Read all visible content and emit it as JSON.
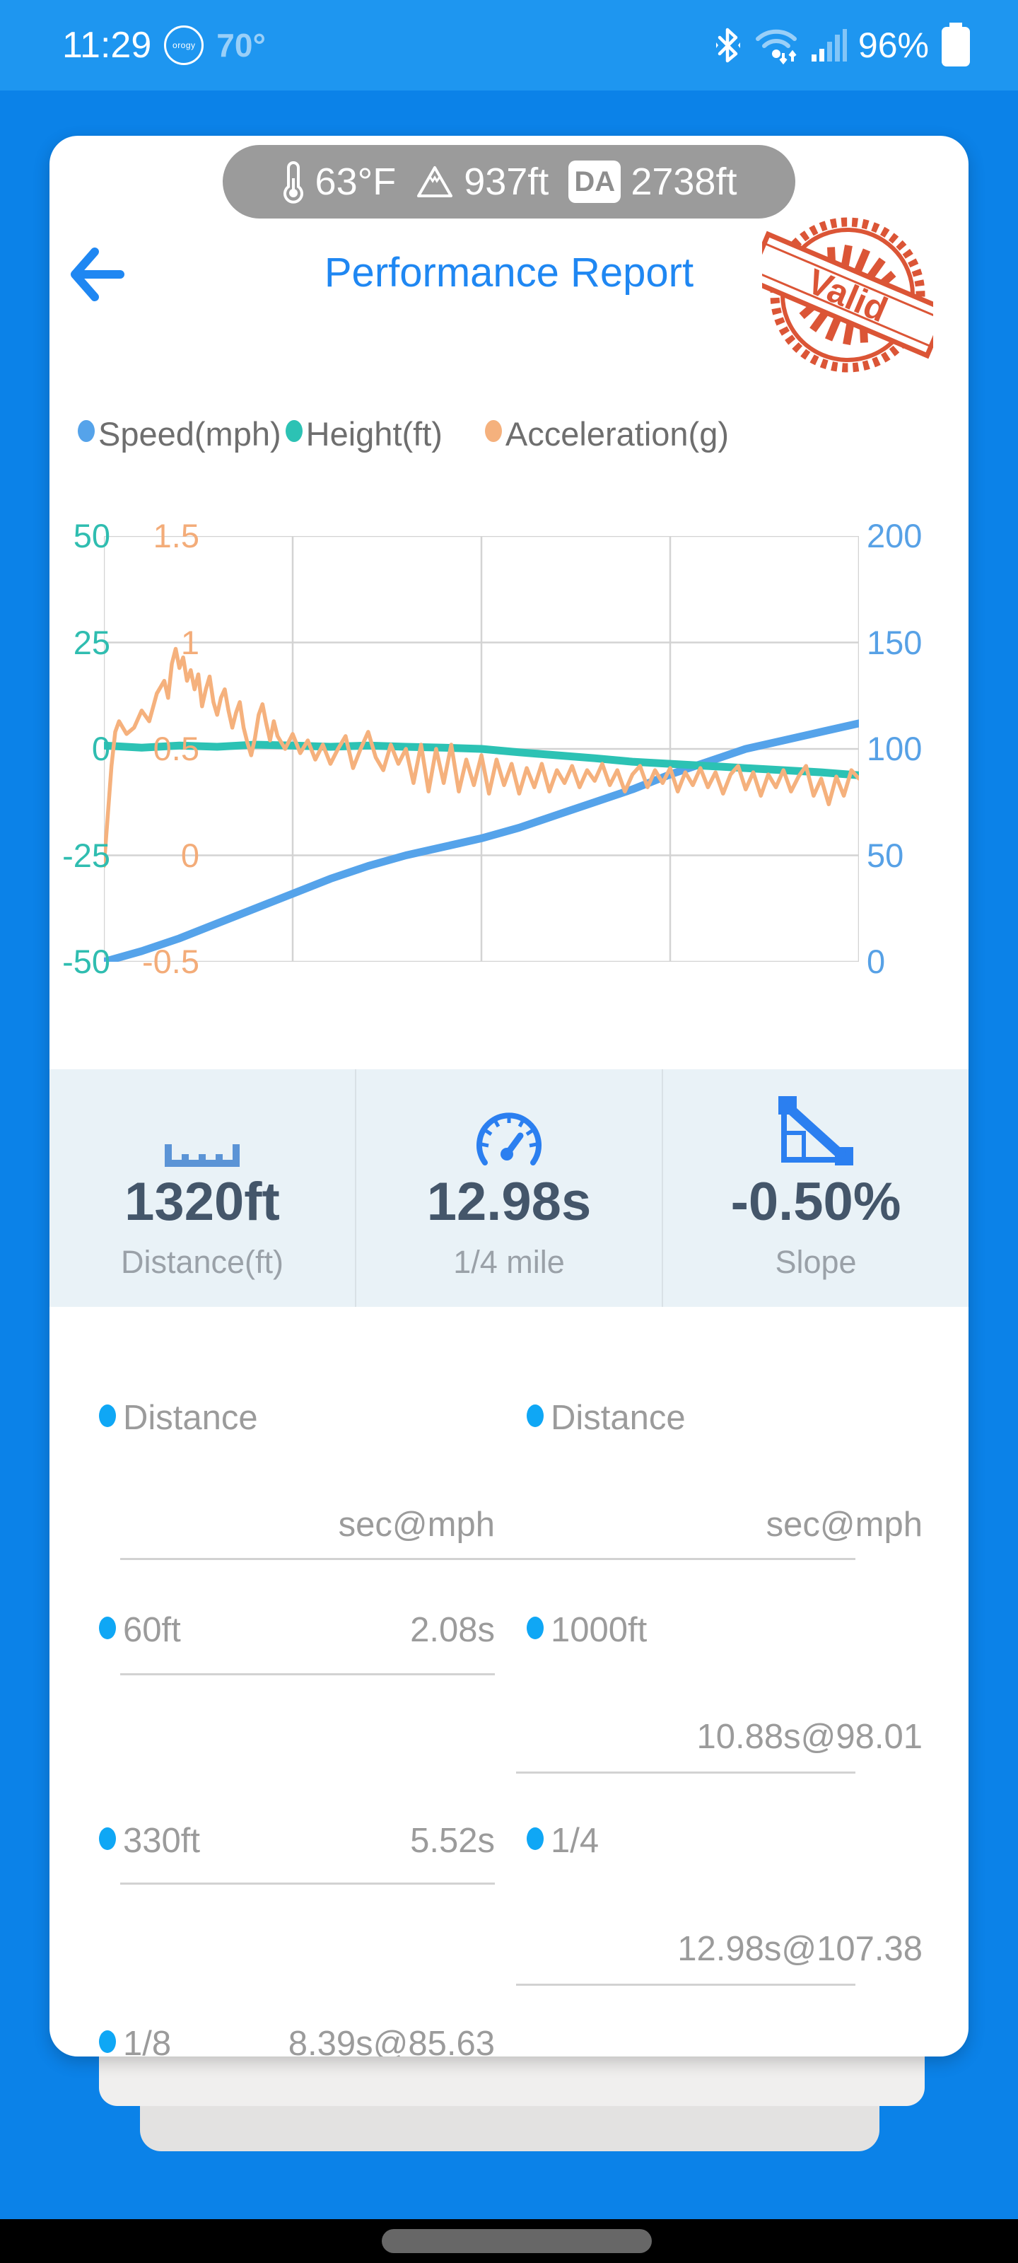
{
  "colors": {
    "app_background": "#0b82e8",
    "status_bar": "#1e96f0",
    "title_blue": "#1f87f2",
    "stamp_red": "#d94726",
    "stats_icon_blue": "#2b7ff0",
    "ruler_icon_blue": "#5b94d6",
    "bullet_blue": "#0fa7f5",
    "stats_bg": "#e9f2f7",
    "value_slate": "#44566a",
    "list_gray": "#9b9b9b",
    "chip_gray": "#9b9b9b"
  },
  "status_bar": {
    "time": "11:29",
    "badge_text": "orogy",
    "ambient_temp": "70°",
    "battery_percent": "96%"
  },
  "weather_chip": {
    "temperature": "63°F",
    "elevation": "937ft",
    "da_badge": "DA",
    "density_altitude": "2738ft"
  },
  "header": {
    "title": "Performance Report",
    "stamp_text": "Valid"
  },
  "chart_data": {
    "type": "line",
    "title": "",
    "legend_position": "top",
    "grid": {
      "h_divisions": 4,
      "v_divisions": 4
    },
    "x_range": [
      0,
      1
    ],
    "axes": {
      "left_height": {
        "label": "Height(ft)",
        "color": "#2fbdb0",
        "range": [
          -50,
          50
        ],
        "ticks": [
          50,
          25,
          0,
          -25,
          -50
        ]
      },
      "left_accel": {
        "label": "Acceleration(g)",
        "color": "#f3ac79",
        "range": [
          -0.5,
          1.5
        ],
        "ticks": [
          "1.5",
          "1",
          "0.5",
          "0",
          "-0.5"
        ]
      },
      "right_speed": {
        "label": "Speed(mph)",
        "color": "#57a1e6",
        "range": [
          0,
          200
        ],
        "ticks": [
          200,
          150,
          100,
          50,
          0
        ]
      }
    },
    "series": [
      {
        "name": "Speed(mph)",
        "axis": "right_speed",
        "color": "#55a3ea",
        "width": 11,
        "points": [
          [
            0,
            0
          ],
          [
            0.05,
            5
          ],
          [
            0.1,
            11
          ],
          [
            0.15,
            18
          ],
          [
            0.2,
            25
          ],
          [
            0.25,
            32
          ],
          [
            0.3,
            39
          ],
          [
            0.35,
            45
          ],
          [
            0.4,
            50
          ],
          [
            0.45,
            54
          ],
          [
            0.5,
            58
          ],
          [
            0.55,
            63
          ],
          [
            0.6,
            69
          ],
          [
            0.65,
            75
          ],
          [
            0.7,
            81
          ],
          [
            0.75,
            88
          ],
          [
            0.8,
            94
          ],
          [
            0.85,
            100
          ],
          [
            0.9,
            104
          ],
          [
            0.95,
            108
          ],
          [
            1,
            112
          ]
        ]
      },
      {
        "name": "Height(ft)",
        "axis": "left_height",
        "color": "#2cc2b4",
        "width": 11,
        "points": [
          [
            0,
            0.8
          ],
          [
            0.05,
            0.3
          ],
          [
            0.1,
            0.8
          ],
          [
            0.15,
            0.5
          ],
          [
            0.2,
            1
          ],
          [
            0.25,
            0.8
          ],
          [
            0.3,
            0.5
          ],
          [
            0.35,
            0.8
          ],
          [
            0.4,
            0.5
          ],
          [
            0.45,
            0.3
          ],
          [
            0.5,
            0
          ],
          [
            0.55,
            -0.8
          ],
          [
            0.6,
            -1.5
          ],
          [
            0.65,
            -2.2
          ],
          [
            0.7,
            -3
          ],
          [
            0.75,
            -3.5
          ],
          [
            0.8,
            -4
          ],
          [
            0.85,
            -4.5
          ],
          [
            0.9,
            -5
          ],
          [
            0.95,
            -5.5
          ],
          [
            1,
            -6.2
          ]
        ]
      },
      {
        "name": "Acceleration(g)",
        "axis": "left_accel",
        "color": "#f5b17d",
        "width": 5.5,
        "points": [
          [
            0,
            -0.05
          ],
          [
            0.005,
            0.18
          ],
          [
            0.01,
            0.42
          ],
          [
            0.015,
            0.58
          ],
          [
            0.02,
            0.63
          ],
          [
            0.03,
            0.57
          ],
          [
            0.04,
            0.6
          ],
          [
            0.05,
            0.68
          ],
          [
            0.06,
            0.63
          ],
          [
            0.07,
            0.76
          ],
          [
            0.08,
            0.82
          ],
          [
            0.085,
            0.74
          ],
          [
            0.09,
            0.9
          ],
          [
            0.095,
            0.97
          ],
          [
            0.1,
            0.88
          ],
          [
            0.105,
            0.93
          ],
          [
            0.11,
            0.82
          ],
          [
            0.115,
            0.87
          ],
          [
            0.12,
            0.78
          ],
          [
            0.125,
            0.85
          ],
          [
            0.13,
            0.7
          ],
          [
            0.135,
            0.78
          ],
          [
            0.14,
            0.84
          ],
          [
            0.145,
            0.72
          ],
          [
            0.15,
            0.66
          ],
          [
            0.155,
            0.74
          ],
          [
            0.16,
            0.78
          ],
          [
            0.165,
            0.68
          ],
          [
            0.17,
            0.6
          ],
          [
            0.175,
            0.67
          ],
          [
            0.18,
            0.72
          ],
          [
            0.185,
            0.6
          ],
          [
            0.19,
            0.53
          ],
          [
            0.195,
            0.47
          ],
          [
            0.2,
            0.55
          ],
          [
            0.205,
            0.66
          ],
          [
            0.21,
            0.71
          ],
          [
            0.215,
            0.62
          ],
          [
            0.22,
            0.54
          ],
          [
            0.225,
            0.63
          ],
          [
            0.23,
            0.56
          ],
          [
            0.24,
            0.5
          ],
          [
            0.25,
            0.57
          ],
          [
            0.26,
            0.48
          ],
          [
            0.27,
            0.54
          ],
          [
            0.28,
            0.45
          ],
          [
            0.29,
            0.52
          ],
          [
            0.3,
            0.43
          ],
          [
            0.31,
            0.5
          ],
          [
            0.32,
            0.56
          ],
          [
            0.33,
            0.41
          ],
          [
            0.34,
            0.5
          ],
          [
            0.35,
            0.58
          ],
          [
            0.36,
            0.46
          ],
          [
            0.37,
            0.4
          ],
          [
            0.38,
            0.52
          ],
          [
            0.39,
            0.43
          ],
          [
            0.4,
            0.5
          ],
          [
            0.41,
            0.34
          ],
          [
            0.42,
            0.52
          ],
          [
            0.43,
            0.3
          ],
          [
            0.44,
            0.5
          ],
          [
            0.45,
            0.34
          ],
          [
            0.46,
            0.52
          ],
          [
            0.47,
            0.3
          ],
          [
            0.48,
            0.45
          ],
          [
            0.49,
            0.33
          ],
          [
            0.5,
            0.47
          ],
          [
            0.51,
            0.29
          ],
          [
            0.52,
            0.45
          ],
          [
            0.53,
            0.33
          ],
          [
            0.54,
            0.43
          ],
          [
            0.55,
            0.29
          ],
          [
            0.56,
            0.41
          ],
          [
            0.57,
            0.32
          ],
          [
            0.58,
            0.43
          ],
          [
            0.59,
            0.3
          ],
          [
            0.6,
            0.4
          ],
          [
            0.61,
            0.34
          ],
          [
            0.62,
            0.42
          ],
          [
            0.63,
            0.32
          ],
          [
            0.64,
            0.4
          ],
          [
            0.65,
            0.35
          ],
          [
            0.66,
            0.43
          ],
          [
            0.67,
            0.33
          ],
          [
            0.68,
            0.4
          ],
          [
            0.69,
            0.3
          ],
          [
            0.7,
            0.38
          ],
          [
            0.71,
            0.42
          ],
          [
            0.72,
            0.32
          ],
          [
            0.73,
            0.4
          ],
          [
            0.74,
            0.34
          ],
          [
            0.75,
            0.41
          ],
          [
            0.76,
            0.3
          ],
          [
            0.77,
            0.39
          ],
          [
            0.78,
            0.33
          ],
          [
            0.79,
            0.41
          ],
          [
            0.8,
            0.32
          ],
          [
            0.81,
            0.39
          ],
          [
            0.82,
            0.29
          ],
          [
            0.83,
            0.38
          ],
          [
            0.84,
            0.42
          ],
          [
            0.85,
            0.31
          ],
          [
            0.86,
            0.39
          ],
          [
            0.87,
            0.28
          ],
          [
            0.88,
            0.38
          ],
          [
            0.89,
            0.32
          ],
          [
            0.9,
            0.4
          ],
          [
            0.91,
            0.3
          ],
          [
            0.92,
            0.37
          ],
          [
            0.93,
            0.42
          ],
          [
            0.94,
            0.28
          ],
          [
            0.95,
            0.36
          ],
          [
            0.96,
            0.24
          ],
          [
            0.97,
            0.37
          ],
          [
            0.98,
            0.28
          ],
          [
            0.99,
            0.4
          ],
          [
            1,
            0.36
          ]
        ]
      }
    ]
  },
  "stats": {
    "items": [
      {
        "icon": "ruler-icon",
        "value": "1320ft",
        "label": "Distance(ft)"
      },
      {
        "icon": "gauge-icon",
        "value": "12.98s",
        "label": "1/4 mile"
      },
      {
        "icon": "slope-icon",
        "value": "-0.50%",
        "label": "Slope"
      }
    ]
  },
  "results": {
    "left": {
      "header": "Distance",
      "unit": "sec@mph",
      "items": [
        {
          "label": "60ft",
          "time": "2.08s"
        },
        {
          "label": "330ft",
          "time": "5.52s"
        },
        {
          "label": "1/8",
          "time": "8.39s@85.63"
        }
      ]
    },
    "right": {
      "header": "Distance",
      "unit": "sec@mph",
      "items": [
        {
          "label": "1000ft",
          "time": "10.88s@98.01"
        },
        {
          "label": "1/4",
          "time": "12.98s@107.38"
        }
      ]
    }
  }
}
